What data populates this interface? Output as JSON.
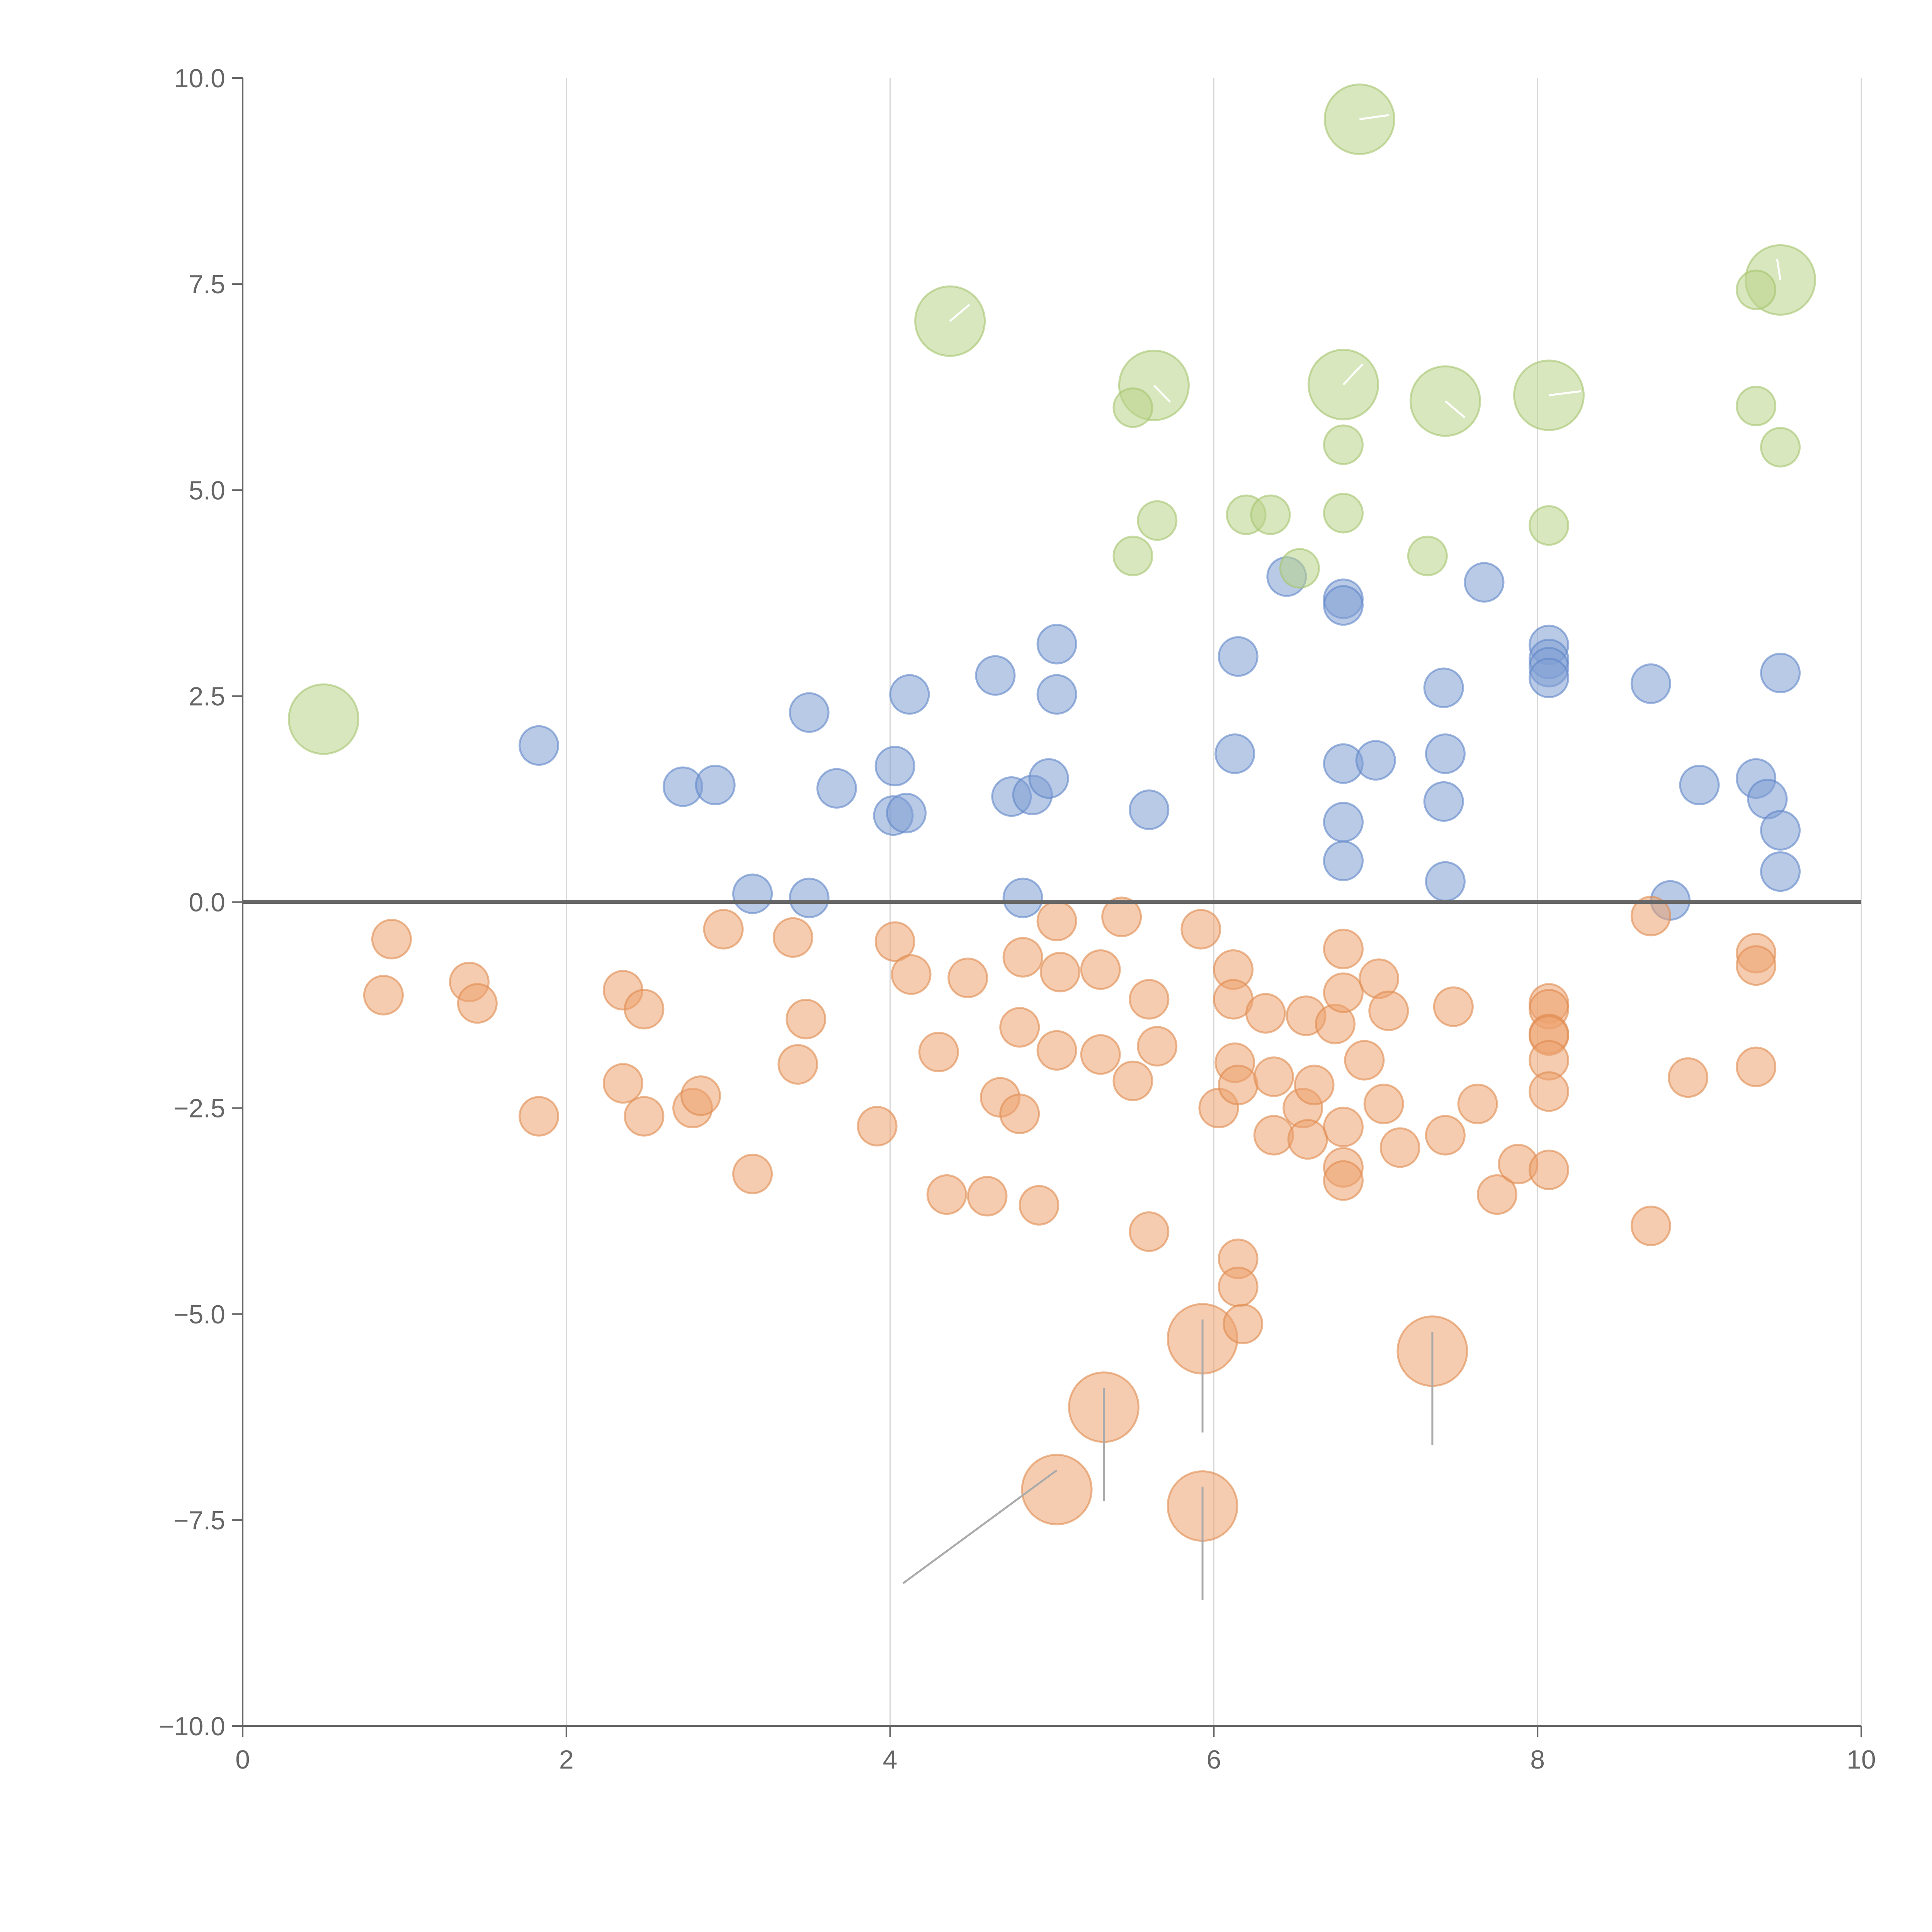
{
  "chart_data": {
    "type": "scatter",
    "title": "",
    "xlabel": "",
    "ylabel": "",
    "xlim": [
      0,
      10
    ],
    "ylim": [
      -10,
      10
    ],
    "x_ticks": [
      0,
      2,
      4,
      6,
      8,
      10
    ],
    "x_tick_labels": [
      "0",
      "2",
      "4",
      "6",
      "8",
      "10"
    ],
    "y_ticks": [
      10,
      7.5,
      5,
      2.5,
      0,
      -2.5,
      -5,
      -7.5,
      -10
    ],
    "y_tick_labels": [
      "10.0",
      "7.5",
      "5.0",
      "2.5",
      "0.0",
      "−2.5",
      "−5.0",
      "−7.5",
      "−10.0"
    ],
    "grid": "vertical",
    "reference_line_y": 0,
    "colors": {
      "blue": "#7f9fd4",
      "blue_edge": "#5f86c8",
      "orange": "#eca36f",
      "orange_edge": "#e08a4e",
      "green": "#b9d38a",
      "green_edge": "#a5c56e"
    },
    "series": [
      {
        "name": "blue",
        "points": [
          [
            1.83,
            1.9
          ],
          [
            2.72,
            1.4
          ],
          [
            2.92,
            1.42
          ],
          [
            3.15,
            0.1
          ],
          [
            3.5,
            2.3
          ],
          [
            3.5,
            0.05
          ],
          [
            3.67,
            1.38
          ],
          [
            4.02,
            1.05
          ],
          [
            4.03,
            1.65
          ],
          [
            4.1,
            1.08
          ],
          [
            4.12,
            2.52
          ],
          [
            4.65,
            2.75
          ],
          [
            4.75,
            1.28
          ],
          [
            4.82,
            0.05
          ],
          [
            4.88,
            1.3
          ],
          [
            4.98,
            1.5
          ],
          [
            5.03,
            3.13
          ],
          [
            5.03,
            2.52
          ],
          [
            5.6,
            1.12
          ],
          [
            6.13,
            1.8
          ],
          [
            6.15,
            2.98
          ],
          [
            6.45,
            3.95
          ],
          [
            6.8,
            3.68
          ],
          [
            6.8,
            3.6
          ],
          [
            6.8,
            1.68
          ],
          [
            6.8,
            0.97
          ],
          [
            6.8,
            0.5
          ],
          [
            7.0,
            1.72
          ],
          [
            7.42,
            1.22
          ],
          [
            7.42,
            2.6
          ],
          [
            7.43,
            1.8
          ],
          [
            7.43,
            0.25
          ],
          [
            7.67,
            3.88
          ],
          [
            8.07,
            3.12
          ],
          [
            8.07,
            2.95
          ],
          [
            8.07,
            2.85
          ],
          [
            8.07,
            2.72
          ],
          [
            8.7,
            2.65
          ],
          [
            8.82,
            0.02
          ],
          [
            9.0,
            1.42
          ],
          [
            9.35,
            1.5
          ],
          [
            9.42,
            1.25
          ],
          [
            9.5,
            2.78
          ],
          [
            9.5,
            0.87
          ],
          [
            9.5,
            0.37
          ]
        ]
      },
      {
        "name": "orange",
        "points": [
          [
            0.87,
            -1.13
          ],
          [
            0.92,
            -0.45
          ],
          [
            1.4,
            -0.97
          ],
          [
            1.45,
            -1.23
          ],
          [
            1.83,
            -2.6
          ],
          [
            2.35,
            -1.07
          ],
          [
            2.35,
            -2.2
          ],
          [
            2.48,
            -1.3
          ],
          [
            2.48,
            -2.6
          ],
          [
            2.78,
            -2.5
          ],
          [
            2.83,
            -2.35
          ],
          [
            2.97,
            -0.33
          ],
          [
            3.15,
            -3.3
          ],
          [
            3.4,
            -0.43
          ],
          [
            3.43,
            -1.97
          ],
          [
            3.48,
            -1.42
          ],
          [
            3.92,
            -2.72
          ],
          [
            4.03,
            -0.48
          ],
          [
            4.13,
            -0.88
          ],
          [
            4.3,
            -1.82
          ],
          [
            4.35,
            -3.55
          ],
          [
            4.48,
            -0.92
          ],
          [
            4.6,
            -3.57
          ],
          [
            4.68,
            -2.37
          ],
          [
            4.8,
            -1.52
          ],
          [
            4.8,
            -2.57
          ],
          [
            4.82,
            -0.67
          ],
          [
            4.92,
            -3.68
          ],
          [
            5.03,
            -0.23
          ],
          [
            5.03,
            -1.8
          ],
          [
            5.05,
            -0.85
          ],
          [
            5.3,
            -1.85
          ],
          [
            5.3,
            -0.82
          ],
          [
            5.43,
            -0.18
          ],
          [
            5.5,
            -2.17
          ],
          [
            5.6,
            -1.18
          ],
          [
            5.6,
            -4.0
          ],
          [
            5.65,
            -1.75
          ],
          [
            5.92,
            -0.33
          ],
          [
            6.03,
            -2.5
          ],
          [
            6.12,
            -0.82
          ],
          [
            6.12,
            -1.18
          ],
          [
            6.13,
            -1.95
          ],
          [
            6.15,
            -2.22
          ],
          [
            6.15,
            -4.33
          ],
          [
            6.15,
            -4.67
          ],
          [
            6.18,
            -5.12
          ],
          [
            6.32,
            -1.35
          ],
          [
            6.37,
            -2.12
          ],
          [
            6.37,
            -2.83
          ],
          [
            6.55,
            -2.5
          ],
          [
            6.57,
            -1.38
          ],
          [
            6.58,
            -2.88
          ],
          [
            6.62,
            -2.22
          ],
          [
            6.75,
            -1.48
          ],
          [
            6.8,
            -0.57
          ],
          [
            6.8,
            -1.1
          ],
          [
            6.8,
            -2.73
          ],
          [
            6.8,
            -3.22
          ],
          [
            6.8,
            -3.38
          ],
          [
            6.93,
            -1.92
          ],
          [
            7.02,
            -0.93
          ],
          [
            7.05,
            -2.45
          ],
          [
            7.08,
            -1.32
          ],
          [
            7.15,
            -2.98
          ],
          [
            7.43,
            -2.83
          ],
          [
            7.48,
            -1.27
          ],
          [
            7.63,
            -2.45
          ],
          [
            7.75,
            -3.55
          ],
          [
            7.88,
            -3.18
          ],
          [
            8.07,
            -1.23
          ],
          [
            8.07,
            -1.3
          ],
          [
            8.07,
            -1.6
          ],
          [
            8.07,
            -1.62
          ],
          [
            8.07,
            -1.92
          ],
          [
            8.07,
            -2.3
          ],
          [
            8.07,
            -3.25
          ],
          [
            8.7,
            -0.17
          ],
          [
            8.7,
            -3.93
          ],
          [
            8.93,
            -2.13
          ],
          [
            9.35,
            -0.62
          ],
          [
            9.35,
            -0.77
          ],
          [
            9.35,
            -2.0
          ]
        ],
        "large_points": [
          [
            5.03,
            -7.13
          ],
          [
            5.32,
            -6.13
          ],
          [
            5.93,
            -5.3
          ],
          [
            5.93,
            -7.33
          ],
          [
            7.35,
            -5.45
          ]
        ]
      },
      {
        "name": "green",
        "points": [
          [
            5.5,
            6.0
          ],
          [
            5.5,
            4.2
          ],
          [
            5.65,
            4.63
          ],
          [
            6.2,
            4.7
          ],
          [
            6.35,
            4.7
          ],
          [
            6.53,
            4.05
          ],
          [
            6.8,
            5.55
          ],
          [
            6.8,
            4.72
          ],
          [
            7.32,
            4.2
          ],
          [
            8.07,
            4.57
          ],
          [
            9.35,
            7.43
          ],
          [
            9.35,
            6.02
          ],
          [
            9.5,
            5.52
          ]
        ],
        "large_points": [
          [
            0.5,
            2.22
          ],
          [
            4.37,
            7.05
          ],
          [
            5.63,
            6.27
          ],
          [
            6.8,
            6.28
          ],
          [
            6.9,
            9.5
          ],
          [
            7.43,
            6.08
          ],
          [
            8.07,
            6.15
          ],
          [
            9.5,
            7.55
          ]
        ]
      }
    ]
  }
}
